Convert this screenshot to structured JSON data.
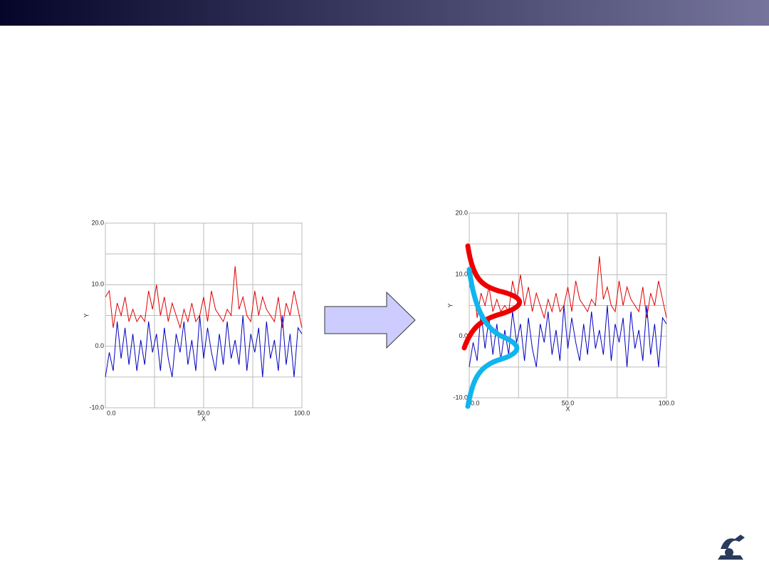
{
  "chart_data": [
    {
      "type": "line",
      "x_label": "X",
      "y_label": "Y",
      "x": [
        0,
        2,
        4,
        6,
        8,
        10,
        12,
        14,
        16,
        18,
        20,
        22,
        24,
        26,
        28,
        30,
        32,
        34,
        36,
        38,
        40,
        42,
        44,
        46,
        48,
        50,
        52,
        54,
        56,
        58,
        60,
        62,
        64,
        66,
        68,
        70,
        72,
        74,
        76,
        78,
        80,
        82,
        84,
        86,
        88,
        90,
        92,
        94,
        96,
        98,
        100
      ],
      "series": [
        {
          "color": "#e00000",
          "values": [
            8,
            9,
            3,
            7,
            5,
            8,
            4,
            6,
            4,
            5,
            4,
            9,
            6,
            10,
            5,
            8,
            4,
            7,
            5,
            3,
            6,
            4,
            7,
            4,
            5,
            8,
            4,
            9,
            6,
            5,
            4,
            6,
            5,
            13,
            6,
            8,
            5,
            4,
            9,
            5,
            8,
            6,
            5,
            4,
            8,
            3,
            7,
            5,
            9,
            6,
            3
          ]
        },
        {
          "color": "#0000c0",
          "values": [
            -5,
            -1,
            -4,
            4,
            -2,
            3,
            -3,
            2,
            -4,
            1,
            -3,
            4,
            -1,
            2,
            -4,
            3,
            -2,
            -5,
            2,
            -1,
            4,
            -3,
            1,
            -4,
            5,
            -2,
            3,
            -1,
            -4,
            2,
            -3,
            4,
            -2,
            1,
            -3,
            5,
            -4,
            2,
            -1,
            3,
            -5,
            4,
            -2,
            1,
            -4,
            5,
            -3,
            2,
            -5,
            3,
            2
          ]
        }
      ],
      "xlim": [
        0,
        100
      ],
      "xticks": [
        {
          "value": 0,
          "label": "0.0"
        },
        {
          "value": 50,
          "label": "50.0"
        },
        {
          "value": 100,
          "label": "100.0"
        }
      ],
      "ylim": [
        -10,
        20
      ],
      "yticks": [
        {
          "value": -10,
          "label": "-10.0"
        },
        {
          "value": 0,
          "label": "0.0"
        },
        {
          "value": 10,
          "label": "10.0"
        },
        {
          "value": 20,
          "label": "20.0"
        }
      ],
      "grid": true
    },
    {
      "type": "line",
      "x_label": "X",
      "y_label": "Y",
      "x": [
        0,
        2,
        4,
        6,
        8,
        10,
        12,
        14,
        16,
        18,
        20,
        22,
        24,
        26,
        28,
        30,
        32,
        34,
        36,
        38,
        40,
        42,
        44,
        46,
        48,
        50,
        52,
        54,
        56,
        58,
        60,
        62,
        64,
        66,
        68,
        70,
        72,
        74,
        76,
        78,
        80,
        82,
        84,
        86,
        88,
        90,
        92,
        94,
        96,
        98,
        100
      ],
      "series": [
        {
          "color": "#e00000",
          "values": [
            8,
            9,
            3,
            7,
            5,
            8,
            4,
            6,
            4,
            5,
            4,
            9,
            6,
            10,
            5,
            8,
            4,
            7,
            5,
            3,
            6,
            4,
            7,
            4,
            5,
            8,
            4,
            9,
            6,
            5,
            4,
            6,
            5,
            13,
            6,
            8,
            5,
            4,
            9,
            5,
            8,
            6,
            5,
            4,
            8,
            3,
            7,
            5,
            9,
            6,
            3
          ]
        },
        {
          "color": "#0000c0",
          "values": [
            -5,
            -1,
            -4,
            4,
            -2,
            3,
            -3,
            2,
            -4,
            1,
            -3,
            4,
            -1,
            2,
            -4,
            3,
            -2,
            -5,
            2,
            -1,
            4,
            -3,
            1,
            -4,
            5,
            -2,
            3,
            -1,
            -4,
            2,
            -3,
            4,
            -2,
            1,
            -3,
            5,
            -4,
            2,
            -1,
            3,
            -5,
            4,
            -2,
            1,
            -4,
            5,
            -3,
            2,
            -5,
            3,
            2
          ]
        }
      ],
      "xlim": [
        0,
        100
      ],
      "xticks": [
        {
          "value": 0,
          "label": "0.0"
        },
        {
          "value": 50,
          "label": "50.0"
        },
        {
          "value": 100,
          "label": "100.0"
        }
      ],
      "ylim": [
        -10,
        20
      ],
      "yticks": [
        {
          "value": -10,
          "label": "-10.0"
        },
        {
          "value": 0,
          "label": "0.0"
        },
        {
          "value": 10,
          "label": "10.0"
        },
        {
          "value": 20,
          "label": "20.0"
        }
      ],
      "grid": true
    }
  ]
}
